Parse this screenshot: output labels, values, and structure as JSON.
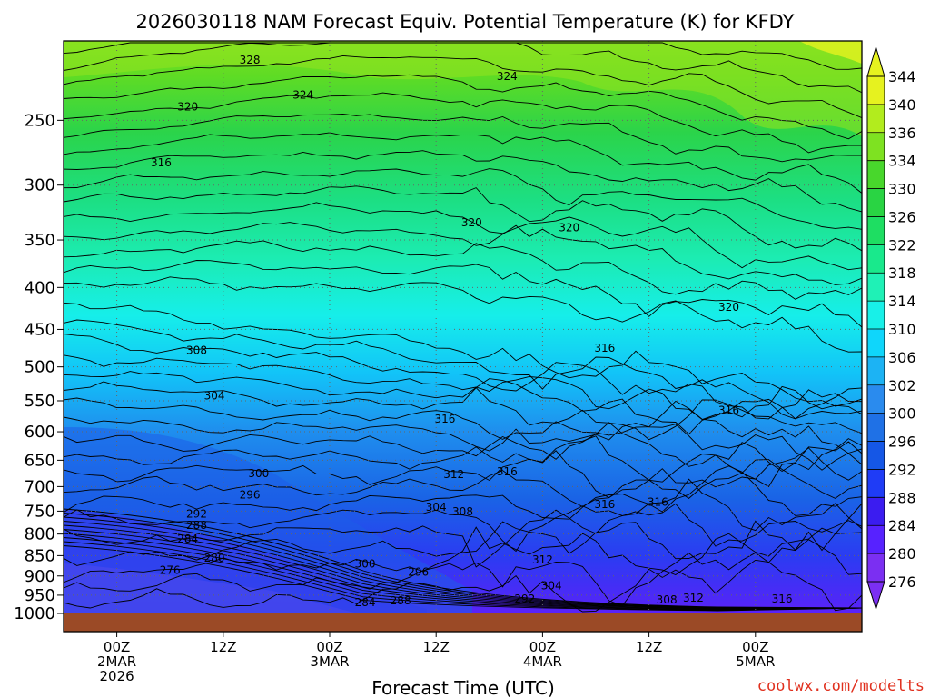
{
  "chart_data": {
    "type": "heatmap",
    "title": "2026030118 NAM Forecast Equiv. Potential Temperature (K) for KFDY",
    "xlabel": "Forecast Time (UTC)",
    "credit": "coolwx.com/modelts",
    "y_axis": {
      "quantity": "pressure",
      "direction": "inverted",
      "ticks": [
        250,
        300,
        350,
        400,
        450,
        500,
        550,
        600,
        650,
        700,
        750,
        800,
        850,
        900,
        950,
        1000
      ]
    },
    "x_axis": {
      "start": "2026-03-01 18Z",
      "end": "2026-03-05 12Z",
      "ticks": [
        {
          "time": "2026-03-02 00Z",
          "hour": "00Z",
          "day": "2MAR",
          "year": "2026"
        },
        {
          "time": "2026-03-02 12Z",
          "hour": "12Z",
          "day": "",
          "year": ""
        },
        {
          "time": "2026-03-03 00Z",
          "hour": "00Z",
          "day": "3MAR",
          "year": ""
        },
        {
          "time": "2026-03-03 12Z",
          "hour": "12Z",
          "day": "",
          "year": ""
        },
        {
          "time": "2026-03-04 00Z",
          "hour": "00Z",
          "day": "4MAR",
          "year": ""
        },
        {
          "time": "2026-03-04 12Z",
          "hour": "12Z",
          "day": "",
          "year": ""
        },
        {
          "time": "2026-03-05 00Z",
          "hour": "00Z",
          "day": "5MAR",
          "year": ""
        }
      ]
    },
    "grid": true,
    "colorbar": {
      "position": "right",
      "levels": [
        276,
        280,
        284,
        288,
        292,
        296,
        300,
        302,
        306,
        310,
        314,
        318,
        322,
        326,
        330,
        334,
        336,
        340,
        344
      ],
      "colors": [
        "#7b2ff2",
        "#5722ff",
        "#3b1cf0",
        "#1f3cf6",
        "#1557e6",
        "#1f71e6",
        "#2a8bee",
        "#1cb3f4",
        "#0fd6fb",
        "#18f0e8",
        "#1ff1b6",
        "#19e98c",
        "#1ede62",
        "#29d443",
        "#48d72c",
        "#7ee221",
        "#b2ec1d",
        "#e6f21f"
      ]
    },
    "contour_labels": [
      {
        "value": "328",
        "time": "2026-03-02 15Z",
        "p": 212
      },
      {
        "value": "324",
        "time": "2026-03-02 21Z",
        "p": 234
      },
      {
        "value": "324",
        "time": "2026-03-03 20Z",
        "p": 222
      },
      {
        "value": "320",
        "time": "2026-03-02 08Z",
        "p": 242
      },
      {
        "value": "316",
        "time": "2026-03-02 05Z",
        "p": 283
      },
      {
        "value": "320",
        "time": "2026-03-03 16Z",
        "p": 335
      },
      {
        "value": "320",
        "time": "2026-03-04 03Z",
        "p": 340
      },
      {
        "value": "320",
        "time": "2026-03-04 21Z",
        "p": 425
      },
      {
        "value": "316",
        "time": "2026-03-04 07Z",
        "p": 477
      },
      {
        "value": "308",
        "time": "2026-03-02 09Z",
        "p": 480
      },
      {
        "value": "304",
        "time": "2026-03-02 11Z",
        "p": 545
      },
      {
        "value": "316",
        "time": "2026-03-03 13Z",
        "p": 582
      },
      {
        "value": "316",
        "time": "2026-03-04 21Z",
        "p": 568
      },
      {
        "value": "300",
        "time": "2026-03-02 16Z",
        "p": 678
      },
      {
        "value": "296",
        "time": "2026-03-02 15Z",
        "p": 720
      },
      {
        "value": "312",
        "time": "2026-03-03 14Z",
        "p": 680
      },
      {
        "value": "316",
        "time": "2026-03-03 20Z",
        "p": 675
      },
      {
        "value": "304",
        "time": "2026-03-03 12Z",
        "p": 745
      },
      {
        "value": "308",
        "time": "2026-03-03 15Z",
        "p": 755
      },
      {
        "value": "316",
        "time": "2026-03-04 07Z",
        "p": 740
      },
      {
        "value": "316",
        "time": "2026-03-04 13Z",
        "p": 735
      },
      {
        "value": "292",
        "time": "2026-03-02 09Z",
        "p": 760
      },
      {
        "value": "288",
        "time": "2026-03-02 09Z",
        "p": 785
      },
      {
        "value": "284",
        "time": "2026-03-02 08Z",
        "p": 815
      },
      {
        "value": "280",
        "time": "2026-03-02 11Z",
        "p": 860
      },
      {
        "value": "276",
        "time": "2026-03-02 06Z",
        "p": 890
      },
      {
        "value": "300",
        "time": "2026-03-03 04Z",
        "p": 875
      },
      {
        "value": "296",
        "time": "2026-03-03 10Z",
        "p": 895
      },
      {
        "value": "312",
        "time": "2026-03-04 00Z",
        "p": 865
      },
      {
        "value": "304",
        "time": "2026-03-04 01Z",
        "p": 930
      },
      {
        "value": "292",
        "time": "2026-03-03 22Z",
        "p": 965
      },
      {
        "value": "288",
        "time": "2026-03-03 08Z",
        "p": 970
      },
      {
        "value": "284",
        "time": "2026-03-03 04Z",
        "p": 975
      },
      {
        "value": "308",
        "time": "2026-03-04 14Z",
        "p": 967
      },
      {
        "value": "312",
        "time": "2026-03-04 17Z",
        "p": 962
      },
      {
        "value": "316",
        "time": "2026-03-05 03Z",
        "p": 965
      }
    ]
  }
}
